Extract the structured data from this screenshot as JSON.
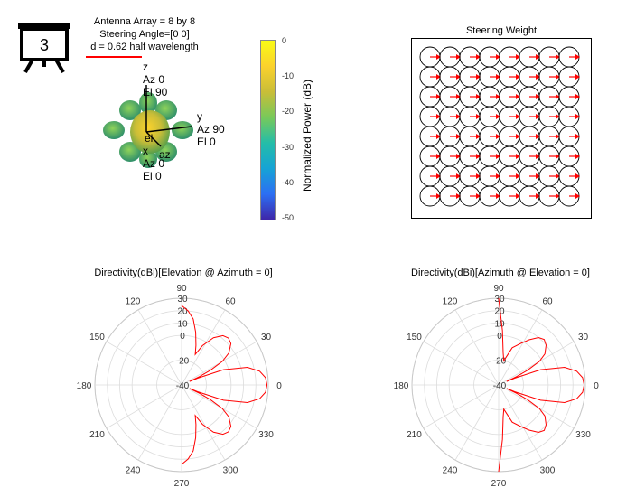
{
  "header": {
    "line1": "Antenna Array = 8 by 8",
    "line2": "Steering Angle=[0 0]",
    "line3": "d = 0.62 half wavelength",
    "slide_number": "3"
  },
  "pattern3d": {
    "z_axis": [
      "z",
      "Az 0",
      "El 90"
    ],
    "y_axis": [
      "y",
      "Az 90",
      "El 0"
    ],
    "x_axis": [
      "x",
      "Az 0",
      "El 0"
    ],
    "el_label": "el",
    "az_label": "az",
    "colorbar_label": "Normalized Power (dB)",
    "colorbar_ticks": [
      "0",
      "-10",
      "-20",
      "-30",
      "-40",
      "-50"
    ],
    "colormap": [
      "#3e26a8",
      "#2c6ff3",
      "#16a3d5",
      "#24bda8",
      "#78c95a",
      "#c9bd38",
      "#fbd22c",
      "#f9fb15"
    ]
  },
  "steering": {
    "title": "Steering Weight",
    "rows": 8,
    "cols": 8,
    "arrow_color": "#ff0000"
  },
  "chart_data": [
    {
      "type": "polar",
      "title": "Directivity(dBi)[Elevation @ Azimuth = 0]",
      "angle_ticks": [
        "0",
        "30",
        "60",
        "90",
        "120",
        "150",
        "180",
        "210",
        "240",
        "270",
        "300",
        "330"
      ],
      "radial_ticks": [
        "-40",
        "-20",
        "0",
        "10",
        "20",
        "30"
      ],
      "rlim": [
        -40,
        30
      ],
      "series": [
        {
          "color": "#ff0000",
          "points": [
            [
              -90,
              24.2
            ],
            [
              -85,
              20
            ],
            [
              -80,
              14
            ],
            [
              -75,
              4
            ],
            [
              -70,
              -6
            ],
            [
              -66,
              -13
            ],
            [
              -62,
              -4
            ],
            [
              -56,
              6
            ],
            [
              -50,
              12
            ],
            [
              -45,
              13.5
            ],
            [
              -40,
              12
            ],
            [
              -34,
              6
            ],
            [
              -30,
              -2
            ],
            [
              -27,
              -14
            ],
            [
              -25,
              -24
            ],
            [
              -24,
              -33
            ],
            [
              -23,
              -26
            ],
            [
              -20,
              -4
            ],
            [
              -15,
              15
            ],
            [
              -10,
              24
            ],
            [
              -5,
              28
            ],
            [
              0,
              29
            ],
            [
              5,
              28
            ],
            [
              10,
              24
            ],
            [
              15,
              15
            ],
            [
              20,
              -4
            ],
            [
              23,
              -26
            ],
            [
              24,
              -33
            ],
            [
              25,
              -24
            ],
            [
              27,
              -14
            ],
            [
              30,
              -2
            ],
            [
              34,
              6
            ],
            [
              40,
              12
            ],
            [
              45,
              13.5
            ],
            [
              50,
              12
            ],
            [
              56,
              6
            ],
            [
              62,
              -4
            ],
            [
              66,
              -13
            ],
            [
              70,
              -6
            ],
            [
              75,
              4
            ],
            [
              80,
              14
            ],
            [
              85,
              20
            ],
            [
              90,
              24.2
            ]
          ]
        }
      ]
    },
    {
      "type": "polar",
      "title": "Directivity(dBi)[Azimuth @ Elevation = 0]",
      "angle_ticks": [
        "0",
        "30",
        "60",
        "90",
        "120",
        "150",
        "180",
        "210",
        "240",
        "270",
        "300",
        "330"
      ],
      "radial_ticks": [
        "-40",
        "-20",
        "0",
        "10",
        "20",
        "30"
      ],
      "rlim": [
        -40,
        30
      ],
      "series": [
        {
          "color": "#ff0000",
          "points": [
            [
              -90,
              30
            ],
            [
              -86,
              4
            ],
            [
              -82,
              -14
            ],
            [
              -78,
              -20
            ],
            [
              -70,
              -8
            ],
            [
              -62,
              -2
            ],
            [
              -56,
              4
            ],
            [
              -50,
              10
            ],
            [
              -45,
              12
            ],
            [
              -40,
              10
            ],
            [
              -34,
              5
            ],
            [
              -30,
              -2
            ],
            [
              -27,
              -14
            ],
            [
              -25,
              -24
            ],
            [
              -24,
              -33
            ],
            [
              -23,
              -26
            ],
            [
              -20,
              -4
            ],
            [
              -15,
              15
            ],
            [
              -10,
              24
            ],
            [
              -5,
              28
            ],
            [
              0,
              29
            ],
            [
              5,
              28
            ],
            [
              10,
              24
            ],
            [
              15,
              15
            ],
            [
              20,
              -4
            ],
            [
              23,
              -26
            ],
            [
              24,
              -33
            ],
            [
              25,
              -24
            ],
            [
              27,
              -14
            ],
            [
              30,
              -2
            ],
            [
              34,
              5
            ],
            [
              40,
              10
            ],
            [
              45,
              12
            ],
            [
              50,
              10
            ],
            [
              56,
              4
            ],
            [
              62,
              -2
            ],
            [
              70,
              -8
            ],
            [
              78,
              -20
            ],
            [
              82,
              -14
            ],
            [
              86,
              4
            ],
            [
              90,
              30
            ]
          ]
        }
      ]
    }
  ]
}
